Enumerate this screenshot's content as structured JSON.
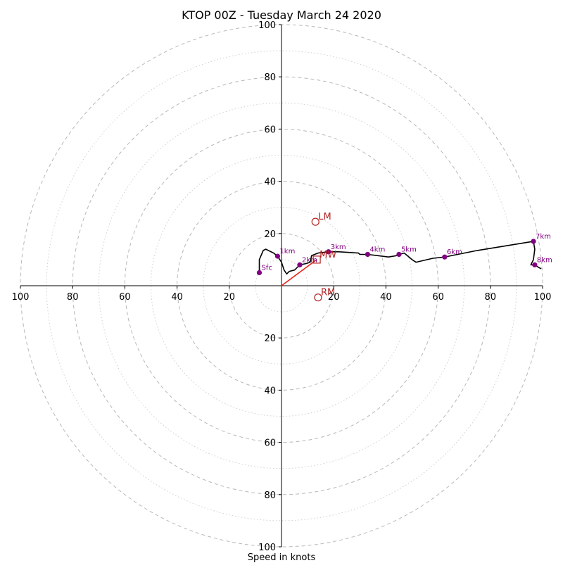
{
  "chart_data": {
    "type": "hodograph",
    "title": "KTOP 00Z - Tuesday March 24 2020",
    "xlabel": "Speed in knots",
    "range": [
      -100,
      100
    ],
    "tick_labels": [
      "100",
      "80",
      "60",
      "40",
      "20",
      "20",
      "40",
      "60",
      "80",
      "100"
    ],
    "ring_major_knots": [
      20,
      40,
      60,
      80,
      100
    ],
    "ring_minor_knots": [
      10,
      30,
      50,
      70,
      90
    ],
    "grid": true,
    "colors": {
      "trace": "#000000",
      "height_markers": "#800080",
      "motion": "#b22222",
      "mean_wind_line": "#e8231a",
      "grid": "#b8b8b8"
    },
    "trace": [
      [
        -8.5,
        5
      ],
      [
        -8.5,
        10
      ],
      [
        -7,
        13.5
      ],
      [
        -6,
        14
      ],
      [
        -3,
        12.5
      ],
      [
        -1.5,
        11.3
      ],
      [
        0,
        9
      ],
      [
        1,
        6
      ],
      [
        2,
        4.5
      ],
      [
        3,
        5.5
      ],
      [
        5,
        6
      ],
      [
        7,
        8
      ],
      [
        9.5,
        8.5
      ],
      [
        11,
        9
      ],
      [
        11.5,
        11.5
      ],
      [
        14,
        12.5
      ],
      [
        18,
        13
      ],
      [
        22,
        13
      ],
      [
        27,
        12.7
      ],
      [
        29.5,
        12.5
      ],
      [
        30,
        12
      ],
      [
        33,
        12
      ],
      [
        37,
        11.5
      ],
      [
        41,
        11
      ],
      [
        44,
        11.5
      ],
      [
        45,
        12
      ],
      [
        47,
        12.5
      ],
      [
        50,
        10
      ],
      [
        51.5,
        9
      ],
      [
        58,
        10.5
      ],
      [
        62.5,
        11
      ],
      [
        75,
        13.5
      ],
      [
        96.5,
        17
      ],
      [
        97,
        14
      ],
      [
        96.5,
        10
      ],
      [
        95.5,
        8
      ],
      [
        97,
        8
      ],
      [
        98.5,
        7
      ],
      [
        99.5,
        6.5
      ]
    ],
    "height_markers": [
      {
        "label": "Sfc",
        "u": -8.5,
        "v": 5
      },
      {
        "label": "1km",
        "u": -1.5,
        "v": 11.3
      },
      {
        "label": "2km",
        "u": 7,
        "v": 8
      },
      {
        "label": "3km",
        "u": 18,
        "v": 13
      },
      {
        "label": "4km",
        "u": 33,
        "v": 12
      },
      {
        "label": "5km",
        "u": 45,
        "v": 12
      },
      {
        "label": "6km",
        "u": 62.5,
        "v": 11
      },
      {
        "label": "7km",
        "u": 96.5,
        "v": 17
      },
      {
        "label": "8km",
        "u": 97,
        "v": 8
      }
    ],
    "storm_motion": [
      {
        "label": "LM",
        "u": 13,
        "v": 24.5,
        "marker": "circle"
      },
      {
        "label": "MW",
        "u": 13.5,
        "v": 10,
        "marker": "square"
      },
      {
        "label": "RM",
        "u": 14,
        "v": -4.5,
        "marker": "circle"
      }
    ],
    "mean_wind_vector": {
      "u": 13.5,
      "v": 10
    }
  }
}
